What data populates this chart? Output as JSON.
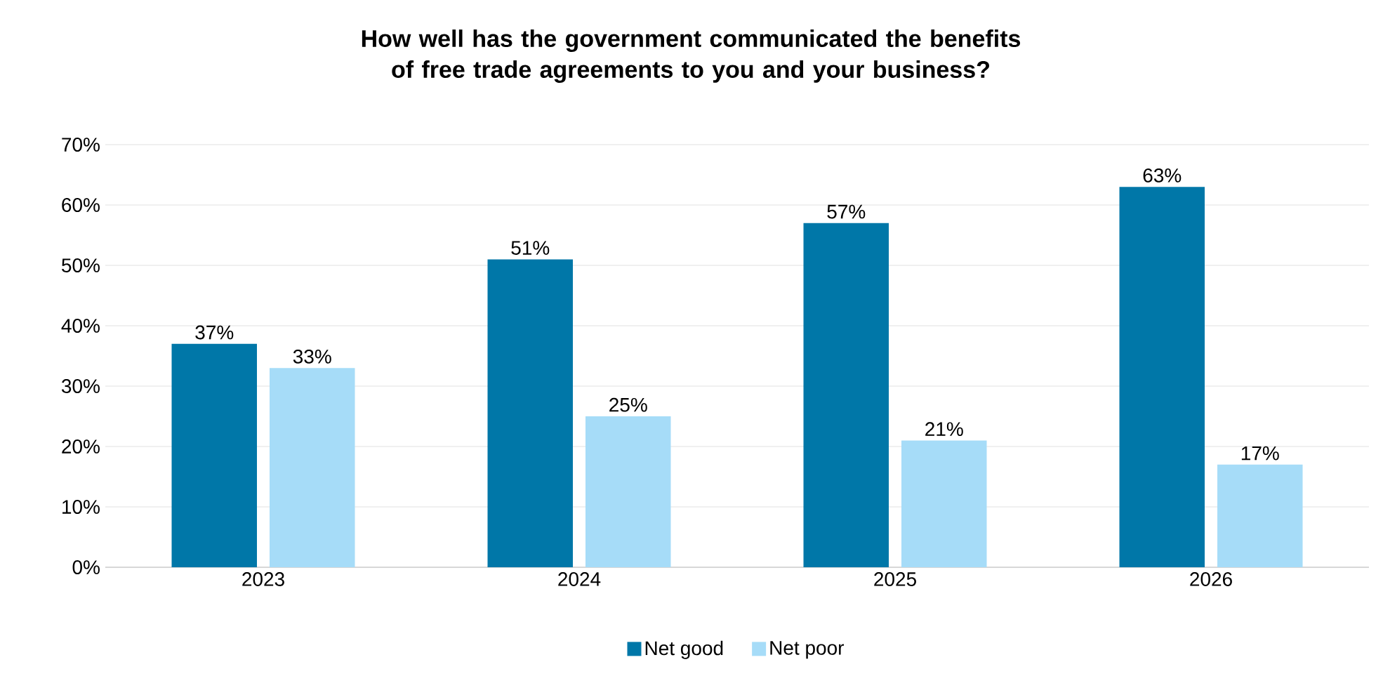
{
  "chart_data": {
    "type": "bar",
    "title": "How well has the government communicated the benefits of free trade agreements to you and your business?",
    "categories": [
      "2023",
      "2024",
      "2025",
      "2026"
    ],
    "series": [
      {
        "name": "Net good",
        "color": "#0077a8",
        "values": [
          37,
          51,
          57,
          63
        ],
        "value_labels": [
          "37%",
          "51%",
          "57%",
          "63%"
        ]
      },
      {
        "name": "Net poor",
        "color": "#a6dcf8",
        "values": [
          33,
          25,
          21,
          17
        ],
        "value_labels": [
          "33%",
          "25%",
          "21%",
          "17%"
        ]
      }
    ],
    "ylim": [
      0,
      70
    ],
    "yticks": [
      {
        "value": 0,
        "label": "0%"
      },
      {
        "value": 10,
        "label": "10%"
      },
      {
        "value": 20,
        "label": "20%"
      },
      {
        "value": 30,
        "label": "30%"
      },
      {
        "value": 40,
        "label": "40%"
      },
      {
        "value": 50,
        "label": "50%"
      },
      {
        "value": 60,
        "label": "60%"
      },
      {
        "value": 70,
        "label": "70%"
      }
    ],
    "grid": "y",
    "legend": "bottom"
  }
}
